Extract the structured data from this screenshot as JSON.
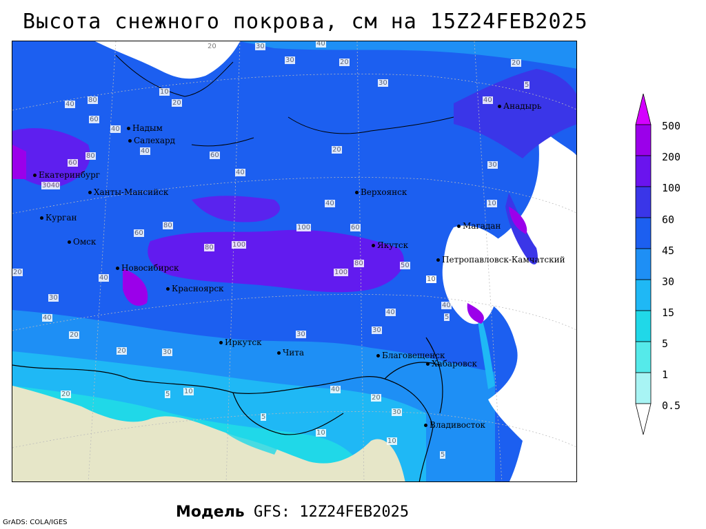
{
  "title": "Высота снежного покрова, см на 15Z24FEB2025",
  "footer": {
    "model_label": "Модель",
    "model_value": "GFS: 12Z24FEB2025"
  },
  "credit": "GrADS: COLA/IGES",
  "legend": {
    "levels": [
      "500",
      "200",
      "100",
      "60",
      "45",
      "30",
      "15",
      "5",
      "1",
      "0.5"
    ],
    "colors": [
      "#d400ff",
      "#9b00ea",
      "#6a14ee",
      "#3a36e8",
      "#1c5ff0",
      "#1e8ff5",
      "#1fb8f5",
      "#20d8e8",
      "#55eaea",
      "#a8f4f4",
      "#ffffff"
    ]
  },
  "cities": [
    {
      "name": "Надым",
      "id": "nadym"
    },
    {
      "name": "Салехард",
      "id": "salekhard"
    },
    {
      "name": "Екатеринбург",
      "id": "yekaterinburg"
    },
    {
      "name": "Ханты-Мансийск",
      "id": "khanty"
    },
    {
      "name": "Курган",
      "id": "kurgan"
    },
    {
      "name": "Омск",
      "id": "omsk"
    },
    {
      "name": "Новосибирск",
      "id": "novosibirsk"
    },
    {
      "name": "Красноярск",
      "id": "krasnoyarsk"
    },
    {
      "name": "Иркутск",
      "id": "irkutsk"
    },
    {
      "name": "Чита",
      "id": "chita"
    },
    {
      "name": "Верхоянск",
      "id": "verkhoyansk"
    },
    {
      "name": "Якутск",
      "id": "yakutsk"
    },
    {
      "name": "Магадан",
      "id": "magadan"
    },
    {
      "name": "Петропавловск-Камчатский",
      "id": "petropavlovsk"
    },
    {
      "name": "Анадырь",
      "id": "anadyr"
    },
    {
      "name": "Благовещенск",
      "id": "blagoveshchensk"
    },
    {
      "name": "Хабаровск",
      "id": "khabarovsk"
    },
    {
      "name": "Владивосток",
      "id": "vladivostok"
    }
  ],
  "contour_labels": [
    "20",
    "30",
    "40",
    "30",
    "20",
    "10",
    "20",
    "40",
    "80",
    "60",
    "40",
    "80",
    "60",
    "40",
    "3040",
    "40",
    "60",
    "80",
    "100",
    "80",
    "100",
    "100",
    "80",
    "60",
    "40",
    "30",
    "20",
    "10",
    "40",
    "30",
    "20",
    "10",
    "5",
    "20",
    "40",
    "60",
    "40",
    "30",
    "20",
    "40",
    "50",
    "30",
    "10",
    "5",
    "40",
    "20",
    "30",
    "10",
    "5",
    "20",
    "30",
    "40",
    "10",
    "5",
    "30",
    "20",
    "10",
    "5"
  ],
  "colors": {
    "land_no_snow": "#e6e6c8",
    "ocean": "#ffffff"
  }
}
